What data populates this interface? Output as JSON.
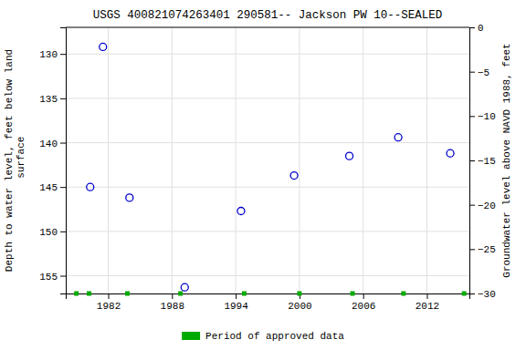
{
  "chart_data": {
    "type": "scatter",
    "title": "USGS 400821074263401 290581-- Jackson PW 10--SEALED",
    "y_label": "Depth to water level, feet below land\n surface",
    "y2_label": "Groundwater level above NAVD 1988, feet",
    "xlim": [
      1978,
      2016
    ],
    "xticks": [
      1982,
      1988,
      1994,
      2000,
      2006,
      2012
    ],
    "ylim": [
      157,
      127
    ],
    "yticks": [
      130,
      135,
      140,
      145,
      150,
      155
    ],
    "y2lim": [
      -30,
      0
    ],
    "y2ticks": [
      0,
      {
        "value": -5,
        "label": "−5"
      },
      {
        "value": -10,
        "label": "−10"
      },
      {
        "value": -15,
        "label": "−15"
      },
      {
        "value": -20,
        "label": "−20"
      },
      {
        "value": -25,
        "label": "−25"
      },
      {
        "value": -30,
        "label": "−30"
      }
    ],
    "grid": true,
    "legend": "bottom",
    "series": [
      {
        "x": [
          1980.3,
          1981.5,
          1984.0,
          1989.2,
          1994.5,
          1999.5,
          2004.7,
          2009.3,
          2014.2
        ],
        "values": [
          145.0,
          129.2,
          146.2,
          156.3,
          147.7,
          143.7,
          141.5,
          139.4,
          141.2
        ],
        "color": "#0000cc",
        "marker": "circle"
      },
      {
        "name": "Period of approved data",
        "x": [
          1979.0,
          1980.2,
          1983.8,
          1988.8,
          1994.8,
          2000.0,
          2005.0,
          2009.8,
          2015.5
        ],
        "values": [
          157,
          157,
          157,
          157,
          157,
          157,
          157,
          157,
          157
        ],
        "color": "#00aa00",
        "marker": "square"
      }
    ]
  }
}
